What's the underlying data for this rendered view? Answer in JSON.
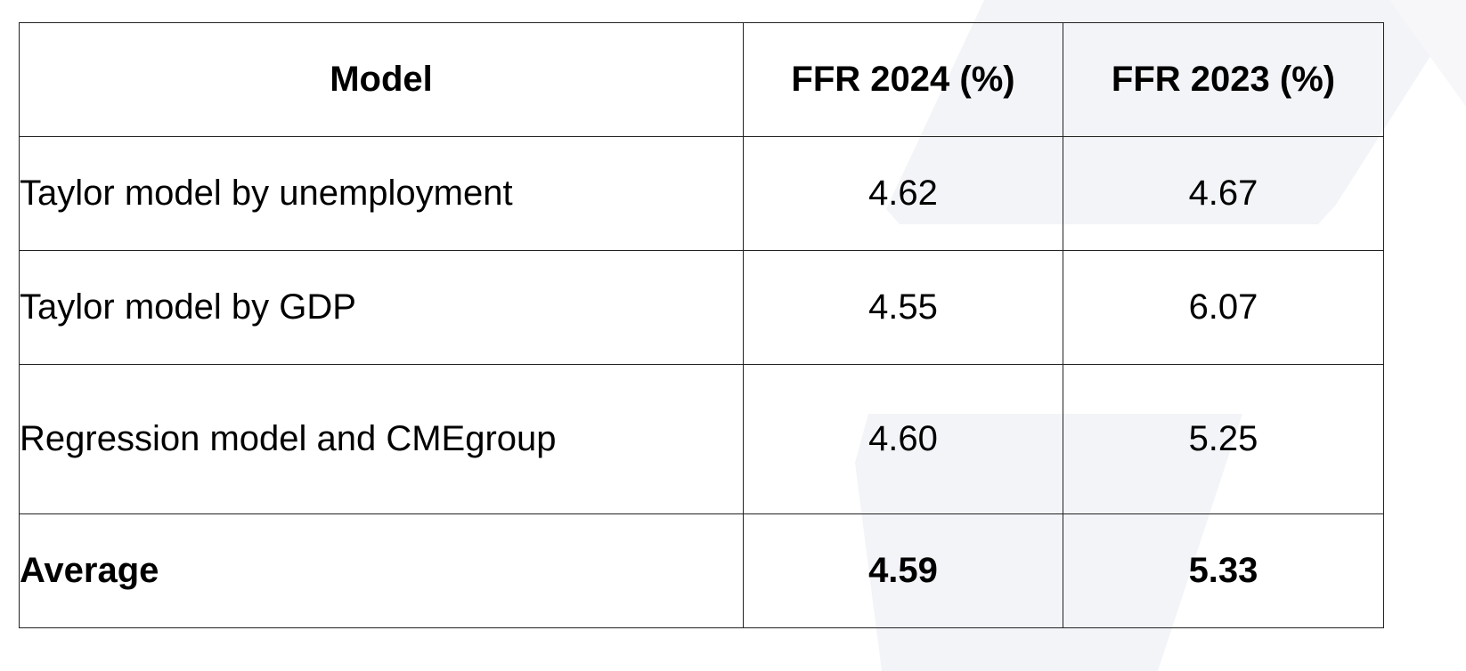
{
  "table": {
    "header": [
      "Model",
      "FFR 2024 (%)",
      "FFR 2023 (%)"
    ],
    "rows": [
      [
        "Taylor model by unemployment",
        "4.62",
        "4.67"
      ],
      [
        "Taylor model by GDP",
        "4.55",
        "6.07"
      ],
      [
        "Regression model and CMEgroup",
        "4.60",
        "5.25"
      ],
      [
        "Average",
        "4.59",
        "5.33"
      ]
    ]
  }
}
